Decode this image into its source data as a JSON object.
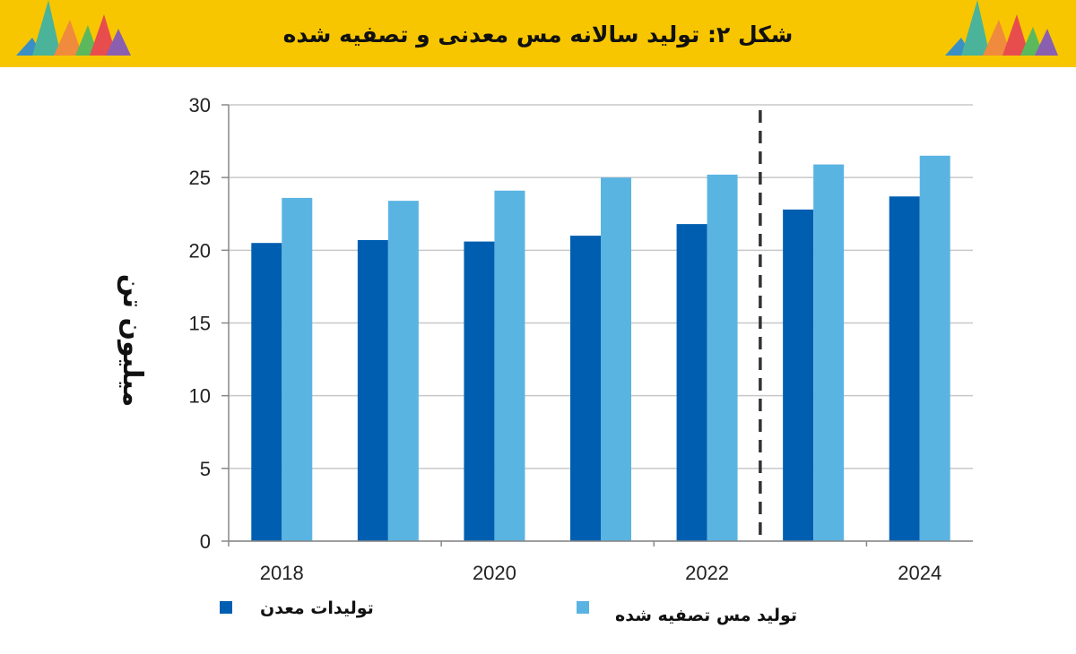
{
  "header": {
    "title": "شکل ۲: تولید سالانه مس معدنی و تصفیه شده",
    "background": "#f7c600"
  },
  "decoration_colors": [
    "#3a8fc4",
    "#4bb39a",
    "#f08a3c",
    "#e84d4d",
    "#8a5fb0",
    "#5cb85c"
  ],
  "chart_data": {
    "type": "bar",
    "categories": [
      "2018",
      "2019",
      "2020",
      "2021",
      "2022",
      "2023",
      "2024"
    ],
    "x_tick_labels": [
      "2018",
      "",
      "2020",
      "",
      "2022",
      "",
      "2024"
    ],
    "series": [
      {
        "name": "تولیدات معدن",
        "values": [
          20.5,
          20.7,
          20.6,
          21.0,
          21.8,
          22.8,
          23.7
        ],
        "color": "#005eb0"
      },
      {
        "name": "تولید مس تصفیه شده",
        "values": [
          23.6,
          23.4,
          24.1,
          25.0,
          25.2,
          25.9,
          26.5
        ],
        "color": "#5ab4e2"
      }
    ],
    "ylabel": "میلیون تن",
    "ylim": [
      0,
      30
    ],
    "yticks": [
      0,
      5,
      10,
      15,
      20,
      25,
      30
    ],
    "grid": true,
    "forecast_divider_after": "2022",
    "legend_position": "bottom"
  }
}
